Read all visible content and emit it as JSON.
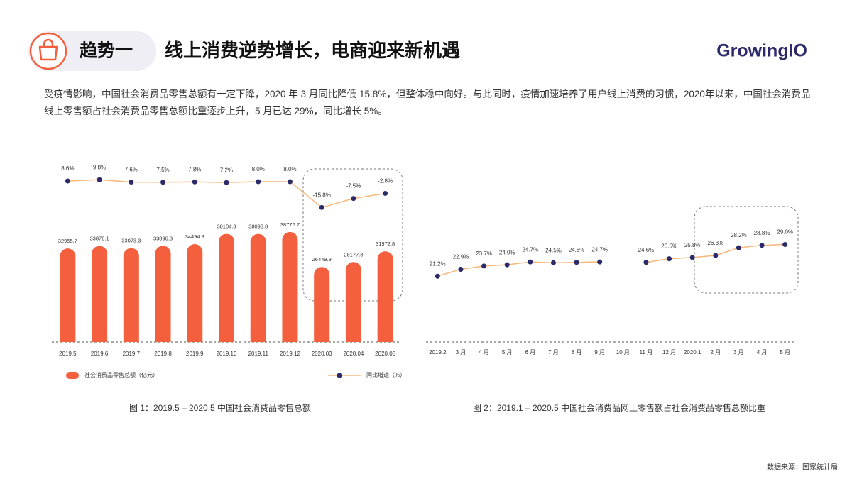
{
  "header": {
    "tag": "趋势一",
    "title": "线上消费逆势增长，电商迎来新机遇",
    "logo": "GrowingIO"
  },
  "intro": "受疫情影响，中国社会消费品零售总额有一定下降，2020 年 3 月同比降低 15.8%，但整体稳中向好。与此同时，疫情加速培养了用户线上消费的习惯，2020年以来，中国社会消费品线上零售额占社会消费品零售总额比重逐步上升，5 月已达 29%，同比增长 5%。",
  "chart_data": [
    {
      "type": "bar",
      "categories": [
        "2019.5",
        "2019.6",
        "2019.7",
        "2019.8",
        "2019.9",
        "2019.10",
        "2019.11",
        "2019.12",
        "2020.03",
        "2020.04",
        "2020.05"
      ],
      "series": [
        {
          "name": "社会消费品零售总额（亿元）",
          "color": "#f4603e",
          "values": [
            32955.7,
            33878.1,
            33073.3,
            33896.3,
            34494.9,
            38104.3,
            38093.8,
            38776.7,
            26449.9,
            28177.8,
            31972.8
          ]
        },
        {
          "name": "同比增速（%）",
          "type": "line",
          "axis": "y2",
          "color": "#f7b77a",
          "marker_color": "#2b2a6b",
          "values": [
            8.6,
            9.8,
            7.6,
            7.5,
            7.8,
            7.2,
            8.0,
            8.0,
            -15.8,
            -7.5,
            -2.8
          ],
          "value_labels": [
            "8.6%",
            "9.8%",
            "7.6%",
            "7.5%",
            "7.8%",
            "7.2%",
            "8.0%",
            "8.0%",
            "-15.8%",
            "-7.5%",
            "-2.8%"
          ]
        }
      ],
      "ylim": [
        0,
        63000
      ],
      "y2lim": [
        -140,
        25
      ],
      "legend": "bottom",
      "caption": "图 1：2019.5 – 2020.5 中国社会消费品零售总额"
    },
    {
      "type": "line",
      "categories": [
        "2019.2",
        "3 月",
        "4 月",
        "5 月",
        "6 月",
        "7 月",
        "8 月",
        "9 月",
        "10 月",
        "11 月",
        "12 月",
        "2020.1",
        "2 月",
        "3 月",
        "4 月",
        "5 月"
      ],
      "series": [
        {
          "color": "#f7b77a",
          "marker_color": "#2b2a6b",
          "values": [
            21.2,
            22.9,
            23.7,
            24.0,
            24.7,
            24.5,
            24.6,
            24.7,
            null,
            24.6,
            25.5,
            25.8,
            26.3,
            28.2,
            28.8,
            29.0
          ],
          "value_labels": [
            "21.2%",
            "22.9%",
            "23.7%",
            "24.0%",
            "24.7%",
            "24.5%",
            "24.6%",
            "24.7%",
            null,
            "24.6%",
            "25.5%",
            "25.8%",
            "26.3%",
            "28.2%",
            "28.8%",
            "29.0%"
          ]
        }
      ],
      "ylim": [
        5,
        49
      ],
      "caption": "图 2：2019.1 – 2020.5 中国社会消费品网上零售额占社会消费品零售总额比重"
    }
  ],
  "source": "数据来源：国家统计局"
}
